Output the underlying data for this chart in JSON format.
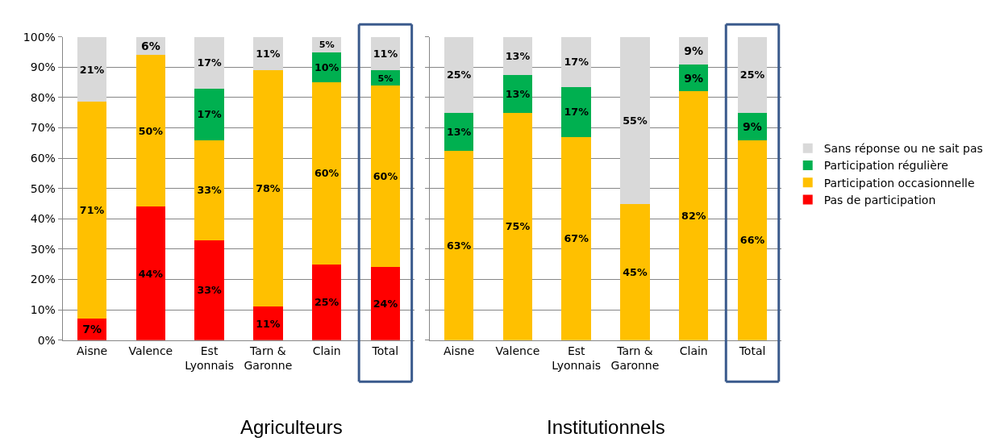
{
  "chart_data": [
    {
      "type": "bar",
      "title": "Agriculteurs",
      "stacked": true,
      "categories": [
        "Aisne",
        "Valence",
        "Est\nLyonnais",
        "Tarn &\nGaronne",
        "Clain",
        "Total"
      ],
      "ylim": [
        0,
        100
      ],
      "yticks": [
        {
          "value": 0,
          "label": "0%"
        },
        {
          "value": 10,
          "label": "10%"
        },
        {
          "value": 20,
          "label": "20%"
        },
        {
          "value": 30,
          "label": "30%"
        },
        {
          "value": 40,
          "label": "40%"
        },
        {
          "value": 50,
          "label": "50%"
        },
        {
          "value": 60,
          "label": "60%"
        },
        {
          "value": 70,
          "label": "70%"
        },
        {
          "value": 80,
          "label": "80%"
        },
        {
          "value": 90,
          "label": "90%"
        },
        {
          "value": 100,
          "label": "100%"
        }
      ],
      "grid": "y",
      "legend": "right",
      "series": [
        {
          "name": "Pas de participation",
          "color": "#ff0000",
          "values": [
            7.2,
            44,
            33,
            11,
            25,
            24
          ],
          "value_labels": [
            "7%",
            "44%",
            "33%",
            "11%",
            "25%",
            "24%"
          ]
        },
        {
          "name": "Participation occasionnelle",
          "color": "#ffc000",
          "values": [
            71.4,
            50,
            33,
            78,
            60,
            60
          ],
          "value_labels": [
            "71%",
            "50%",
            "33%",
            "78%",
            "60%",
            "60%"
          ]
        },
        {
          "name": "Participation régulière",
          "color": "#00b050",
          "values": [
            null,
            null,
            17,
            null,
            10,
            5
          ],
          "value_labels": [
            null,
            null,
            "17%",
            null,
            "10%",
            "5%"
          ]
        },
        {
          "name": "Sans réponse ou ne sait pas",
          "color": "#d9d9d9",
          "values": [
            21.4,
            6,
            17,
            11,
            5,
            11
          ],
          "value_labels": [
            "21%",
            "6%",
            "17%",
            "11%",
            "5%",
            "11%"
          ]
        }
      ]
    },
    {
      "type": "bar",
      "title": "Institutionnels",
      "stacked": true,
      "categories": [
        "Aisne",
        "Valence",
        "Est\nLyonnais",
        "Tarn &\nGaronne",
        "Clain",
        "Total"
      ],
      "ylim": [
        0,
        100
      ],
      "yticks": [
        {
          "value": 0,
          "label": null
        },
        {
          "value": 10,
          "label": null
        },
        {
          "value": 20,
          "label": null
        },
        {
          "value": 30,
          "label": null
        },
        {
          "value": 40,
          "label": null
        },
        {
          "value": 50,
          "label": null
        },
        {
          "value": 60,
          "label": null
        },
        {
          "value": 70,
          "label": null
        },
        {
          "value": 80,
          "label": null
        },
        {
          "value": 90,
          "label": null
        },
        {
          "value": 100,
          "label": null
        }
      ],
      "grid": "y",
      "tick_labels": "x",
      "series": [
        {
          "color": "#ffc000",
          "values": [
            62.5,
            75,
            67,
            45,
            82,
            66
          ],
          "value_labels": [
            "63%",
            "75%",
            "67%",
            "45%",
            "82%",
            "66%"
          ]
        },
        {
          "color": "#00b050",
          "values": [
            12.5,
            12.5,
            16.5,
            null,
            9,
            9
          ],
          "value_labels": [
            "13%",
            "13%",
            "17%",
            null,
            "9%",
            "9%"
          ]
        },
        {
          "color": "#d9d9d9",
          "values": [
            25,
            12.5,
            16.5,
            55,
            9,
            25
          ],
          "value_labels": [
            "25%",
            "13%",
            "17%",
            "55%",
            "9%",
            "25%"
          ]
        }
      ]
    }
  ]
}
